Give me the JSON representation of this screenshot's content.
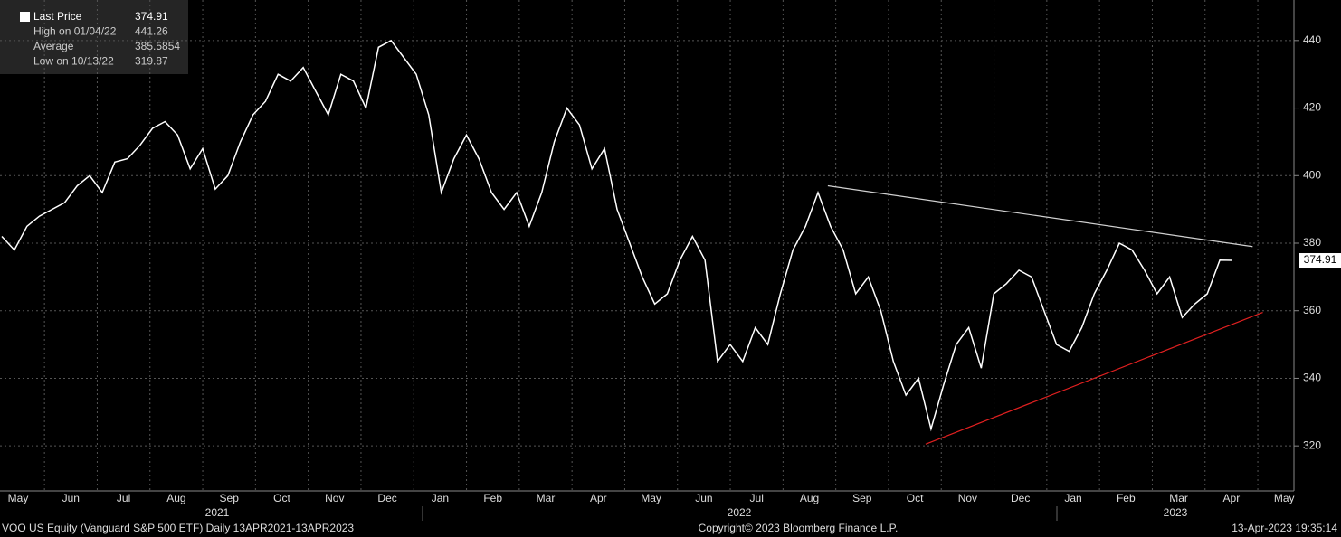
{
  "chart_data": {
    "type": "line",
    "legend": [
      {
        "label": "Last Price",
        "value": "374.91"
      },
      {
        "label": "High on 01/04/22",
        "value": "441.26"
      },
      {
        "label": "Average",
        "value": "385.5854"
      },
      {
        "label": "Low on 10/13/22",
        "value": "319.87"
      }
    ],
    "last_price": 374.91,
    "x_range": [
      "2021-04-13",
      "2023-04-13"
    ],
    "series": [
      {
        "name": "Last Price",
        "color": "#ffffff",
        "values": [
          382,
          378,
          385,
          388,
          390,
          392,
          397,
          400,
          395,
          404,
          405,
          409,
          414,
          416,
          412,
          402,
          408,
          396,
          400,
          410,
          418,
          422,
          430,
          428,
          432,
          425,
          418,
          430,
          428,
          420,
          438,
          440,
          435,
          430,
          418,
          395,
          405,
          412,
          405,
          395,
          390,
          395,
          385,
          395,
          410,
          420,
          415,
          402,
          408,
          390,
          380,
          370,
          362,
          365,
          375,
          382,
          375,
          345,
          350,
          345,
          355,
          350,
          365,
          378,
          385,
          395,
          385,
          378,
          365,
          370,
          360,
          345,
          335,
          340,
          325,
          338,
          350,
          355,
          343,
          365,
          368,
          372,
          370,
          360,
          350,
          348,
          355,
          365,
          372,
          380,
          378,
          372,
          365,
          370,
          358,
          362,
          365,
          375,
          374.91
        ]
      }
    ],
    "trendlines": [
      {
        "color": "#d0d0d0",
        "from": [
          "2022-08-16",
          397
        ],
        "to": [
          "2023-04-25",
          379
        ]
      },
      {
        "color": "#e02020",
        "from": [
          "2022-10-13",
          320.5
        ],
        "to": [
          "2023-05-01",
          359.5
        ]
      }
    ],
    "ylim": [
      308,
      452
    ],
    "yticks": [
      320,
      340,
      360,
      380,
      400,
      420,
      440
    ],
    "months": [
      "May",
      "Jun",
      "Jul",
      "Aug",
      "Sep",
      "Oct",
      "Nov",
      "Dec",
      "Jan",
      "Feb",
      "Mar",
      "Apr",
      "May",
      "Jun",
      "Jul",
      "Aug",
      "Sep",
      "Oct",
      "Nov",
      "Dec",
      "Jan",
      "Feb",
      "Mar",
      "Apr",
      "May"
    ],
    "years": [
      "2021",
      "2022",
      "2023"
    ],
    "grid": true,
    "footer": {
      "left": "VOO US Equity (Vanguard S&P 500 ETF)  Daily 13APR2021-13APR2023",
      "center": "Copyright© 2023 Bloomberg Finance L.P.",
      "right": "13-Apr-2023 19:35:14"
    }
  }
}
